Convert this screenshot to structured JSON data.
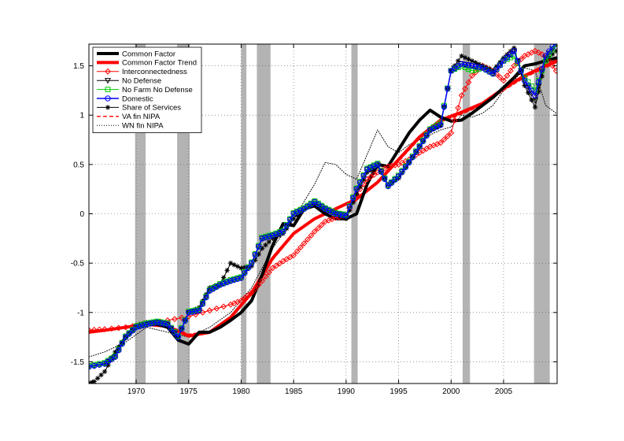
{
  "chart_data": {
    "type": "line",
    "title": "",
    "xlabel": "",
    "ylabel": "",
    "xlim": [
      1965.5,
      2010.1
    ],
    "ylim": [
      -1.72,
      1.72
    ],
    "grid": true,
    "legend_position": "top-left",
    "xticks": [
      1970,
      1975,
      1980,
      1985,
      1990,
      1995,
      2000,
      2005
    ],
    "yticks": [
      -1.5,
      -1,
      -0.5,
      0,
      0.5,
      1,
      1.5
    ],
    "recession_bands": [
      [
        1969.9,
        1970.9
      ],
      [
        1973.9,
        1975.1
      ],
      [
        1980.0,
        1980.5
      ],
      [
        1981.5,
        1982.8
      ],
      [
        1990.5,
        1991.1
      ],
      [
        2001.1,
        2001.8
      ],
      [
        2007.9,
        2009.4
      ]
    ],
    "colors": {
      "common_factor": "#000000",
      "common_factor_trend": "#ff0000",
      "interconnectedness": "#ff0000",
      "no_defense": "#000000",
      "no_farm_no_defense": "#00cc00",
      "domestic": "#0000ff",
      "share_of_services": "#000000",
      "va_fin_nipa": "#ff0000",
      "wn_fin_nipa": "#000000",
      "recession": "#b3b3b3"
    },
    "series": [
      {
        "name": "Common Factor",
        "x": [
          1967,
          1968,
          1969,
          1970,
          1971,
          1972,
          1973,
          1974,
          1975,
          1976,
          1977,
          1978,
          1979,
          1980,
          1981,
          1982,
          1983,
          1984,
          1985,
          1986,
          1987,
          1988,
          1989,
          1990,
          1991,
          1992,
          1993,
          1994,
          1995,
          1996,
          1997,
          1998,
          1999,
          2000,
          2001,
          2002,
          2003,
          2004,
          2005,
          2006,
          2007,
          2008,
          2009,
          2010
        ],
        "values": [
          -1.52,
          -1.42,
          -1.25,
          -1.14,
          -1.12,
          -1.12,
          -1.15,
          -1.28,
          -1.32,
          -1.2,
          -1.2,
          -1.15,
          -1.08,
          -1.0,
          -0.88,
          -0.62,
          -0.32,
          -0.1,
          -0.12,
          0.05,
          0.08,
          0.0,
          -0.05,
          -0.05,
          0.0,
          0.3,
          0.5,
          0.48,
          0.65,
          0.82,
          0.95,
          1.05,
          0.98,
          0.94,
          0.95,
          1.02,
          1.1,
          1.18,
          1.28,
          1.38,
          1.5,
          1.52,
          1.55,
          1.58
        ]
      },
      {
        "name": "Common Factor Trend",
        "x": [
          1965.5,
          1967,
          1969,
          1971,
          1973,
          1975,
          1977,
          1979,
          1981,
          1983,
          1985,
          1987,
          1989,
          1991,
          1993,
          1995,
          1997,
          1999,
          2001,
          2003,
          2005,
          2007,
          2009,
          2010
        ],
        "values": [
          -1.2,
          -1.18,
          -1.15,
          -1.12,
          -1.14,
          -1.24,
          -1.2,
          -1.05,
          -0.8,
          -0.45,
          -0.2,
          -0.05,
          0.05,
          0.15,
          0.32,
          0.55,
          0.78,
          0.95,
          1.03,
          1.12,
          1.27,
          1.4,
          1.5,
          1.55
        ]
      },
      {
        "name": "Interconnectedness",
        "x": [
          1965.5,
          1967,
          1969,
          1971,
          1973,
          1975,
          1977,
          1979,
          1980,
          1981,
          1982,
          1983,
          1984,
          1985,
          1986,
          1987,
          1988,
          1989,
          1990,
          1991,
          1992,
          1993,
          1994,
          1995,
          1996,
          1997,
          1998,
          1999,
          2000,
          2001,
          2002,
          2003,
          2004,
          2005,
          2006,
          2007,
          2008,
          2009,
          2010
        ],
        "values": [
          -1.18,
          -1.17,
          -1.15,
          -1.12,
          -1.08,
          -1.04,
          -0.98,
          -0.92,
          -0.88,
          -0.8,
          -0.68,
          -0.55,
          -0.48,
          -0.42,
          -0.3,
          -0.18,
          -0.08,
          -0.04,
          -0.02,
          0.2,
          0.35,
          0.42,
          0.48,
          0.5,
          0.55,
          0.62,
          0.68,
          0.72,
          0.82,
          1.2,
          1.4,
          1.5,
          1.45,
          1.35,
          1.5,
          1.6,
          1.65,
          1.6,
          1.45
        ]
      },
      {
        "name": "No Defense",
        "x": [
          1965.5,
          1967,
          1968,
          1969,
          1970,
          1971,
          1972,
          1973,
          1974,
          1975,
          1976,
          1977,
          1978,
          1979,
          1980,
          1981,
          1982,
          1983,
          1984,
          1985,
          1986,
          1987,
          1988,
          1989,
          1990,
          1991,
          1992,
          1993,
          1994,
          1995,
          1996,
          1997,
          1998,
          1999,
          2000,
          2001,
          2002,
          2003,
          2004,
          2005,
          2006,
          2007,
          2008,
          2009,
          2010
        ],
        "values": [
          -1.55,
          -1.52,
          -1.45,
          -1.25,
          -1.15,
          -1.12,
          -1.1,
          -1.12,
          -1.25,
          -1.0,
          -0.98,
          -0.78,
          -0.72,
          -0.68,
          -0.65,
          -0.5,
          -0.25,
          -0.22,
          -0.18,
          0.0,
          0.05,
          0.12,
          0.05,
          0.0,
          -0.02,
          0.25,
          0.45,
          0.5,
          0.28,
          0.38,
          0.52,
          0.68,
          0.85,
          0.9,
          1.45,
          1.52,
          1.5,
          1.48,
          1.42,
          1.55,
          1.65,
          1.35,
          1.15,
          1.58,
          1.72
        ]
      },
      {
        "name": "No Farm No Defense",
        "x": [
          1965.5,
          1967,
          1968,
          1969,
          1970,
          1971,
          1972,
          1973,
          1974,
          1975,
          1976,
          1977,
          1978,
          1979,
          1980,
          1981,
          1982,
          1983,
          1984,
          1985,
          1986,
          1987,
          1988,
          1989,
          1990,
          1991,
          1992,
          1993,
          1994,
          1995,
          1996,
          1997,
          1998,
          1999,
          2000,
          2001,
          2002,
          2003,
          2004,
          2005,
          2006,
          2007,
          2008,
          2009,
          2010
        ],
        "values": [
          -1.54,
          -1.51,
          -1.44,
          -1.24,
          -1.14,
          -1.11,
          -1.09,
          -1.11,
          -1.24,
          -0.99,
          -0.97,
          -0.77,
          -0.71,
          -0.67,
          -0.64,
          -0.49,
          -0.24,
          -0.21,
          -0.17,
          0.01,
          0.06,
          0.13,
          0.06,
          0.01,
          -0.01,
          0.26,
          0.46,
          0.51,
          0.29,
          0.39,
          0.53,
          0.69,
          0.86,
          0.92,
          1.45,
          1.5,
          1.45,
          1.48,
          1.42,
          1.55,
          1.6,
          1.38,
          1.25,
          1.55,
          1.72
        ]
      },
      {
        "name": "Domestic",
        "x": [
          1965.5,
          1967,
          1968,
          1969,
          1970,
          1971,
          1972,
          1973,
          1974,
          1975,
          1976,
          1977,
          1978,
          1979,
          1980,
          1981,
          1982,
          1983,
          1984,
          1985,
          1986,
          1987,
          1988,
          1989,
          1990,
          1991,
          1992,
          1993,
          1994,
          1995,
          1996,
          1997,
          1998,
          1999,
          2000,
          2001,
          2002,
          2003,
          2004,
          2005,
          2006,
          2007,
          2008,
          2009,
          2010
        ],
        "values": [
          -1.55,
          -1.52,
          -1.45,
          -1.25,
          -1.15,
          -1.12,
          -1.1,
          -1.12,
          -1.25,
          -1.0,
          -0.98,
          -0.78,
          -0.72,
          -0.68,
          -0.65,
          -0.5,
          -0.25,
          -0.22,
          -0.18,
          0.0,
          0.05,
          0.12,
          0.05,
          0.0,
          -0.02,
          0.25,
          0.45,
          0.5,
          0.28,
          0.38,
          0.52,
          0.68,
          0.85,
          0.9,
          1.45,
          1.52,
          1.5,
          1.48,
          1.42,
          1.55,
          1.65,
          1.35,
          1.2,
          1.6,
          1.74
        ]
      },
      {
        "name": "Share of Services",
        "x": [
          1965.5,
          1966,
          1967,
          1968,
          1969,
          1970,
          1971,
          1972,
          1973,
          1974,
          1975,
          1976,
          1977,
          1978,
          1979,
          1980,
          1981,
          1982,
          1983,
          1984,
          1985,
          1986,
          1987,
          1988,
          1989,
          1990,
          1991,
          1992,
          1993,
          1994,
          1995,
          1996,
          1997,
          1998,
          1999,
          2000,
          2001,
          2002,
          2003,
          2004,
          2005,
          2006,
          2007,
          2008,
          2009,
          2010
        ],
        "values": [
          -1.72,
          -1.7,
          -1.6,
          -1.4,
          -1.25,
          -1.13,
          -1.1,
          -1.1,
          -1.12,
          -1.25,
          -1.0,
          -0.95,
          -0.75,
          -0.72,
          -0.5,
          -0.55,
          -0.53,
          -0.35,
          -0.25,
          -0.2,
          -0.05,
          0.05,
          0.1,
          0.05,
          0.0,
          -0.05,
          0.2,
          0.42,
          0.48,
          0.3,
          0.36,
          0.52,
          0.68,
          0.84,
          0.9,
          1.45,
          1.6,
          1.55,
          1.5,
          1.45,
          1.58,
          1.68,
          1.3,
          1.08,
          1.55,
          1.65
        ]
      },
      {
        "name": "VA fin NIPA",
        "x": [
          1965.5,
          1967,
          1969,
          1971,
          1973,
          1975,
          1977,
          1979,
          1981,
          1983,
          1985,
          1987,
          1989,
          1991,
          1993,
          1995,
          1997,
          1999,
          2001,
          2003,
          2005,
          2007,
          2009,
          2010
        ],
        "values": [
          -1.19,
          -1.17,
          -1.14,
          -1.11,
          -1.13,
          -1.22,
          -1.19,
          -1.06,
          -0.82,
          -0.47,
          -0.21,
          -0.06,
          0.04,
          0.14,
          0.31,
          0.53,
          0.76,
          0.93,
          1.01,
          1.1,
          1.25,
          1.38,
          1.48,
          1.53
        ]
      },
      {
        "name": "WN fin NIPA",
        "x": [
          1965.5,
          1967,
          1969,
          1971,
          1973,
          1975,
          1977,
          1979,
          1981,
          1983,
          1985,
          1987,
          1988,
          1989,
          1990,
          1991,
          1992,
          1993,
          1994,
          1995,
          1996,
          1997,
          1998,
          1999,
          2000,
          2001,
          2002,
          2003,
          2004,
          2005,
          2006,
          2007,
          2008,
          2009,
          2010
        ],
        "values": [
          -1.45,
          -1.4,
          -1.3,
          -1.15,
          -1.2,
          -1.25,
          -1.15,
          -1.0,
          -0.75,
          -0.35,
          -0.05,
          0.3,
          0.52,
          0.5,
          0.4,
          0.35,
          0.6,
          0.85,
          0.68,
          0.62,
          0.7,
          0.75,
          0.8,
          0.85,
          0.88,
          1.0,
          0.98,
          1.02,
          1.1,
          1.25,
          1.35,
          1.48,
          1.45,
          1.1,
          1.02
        ]
      }
    ]
  }
}
